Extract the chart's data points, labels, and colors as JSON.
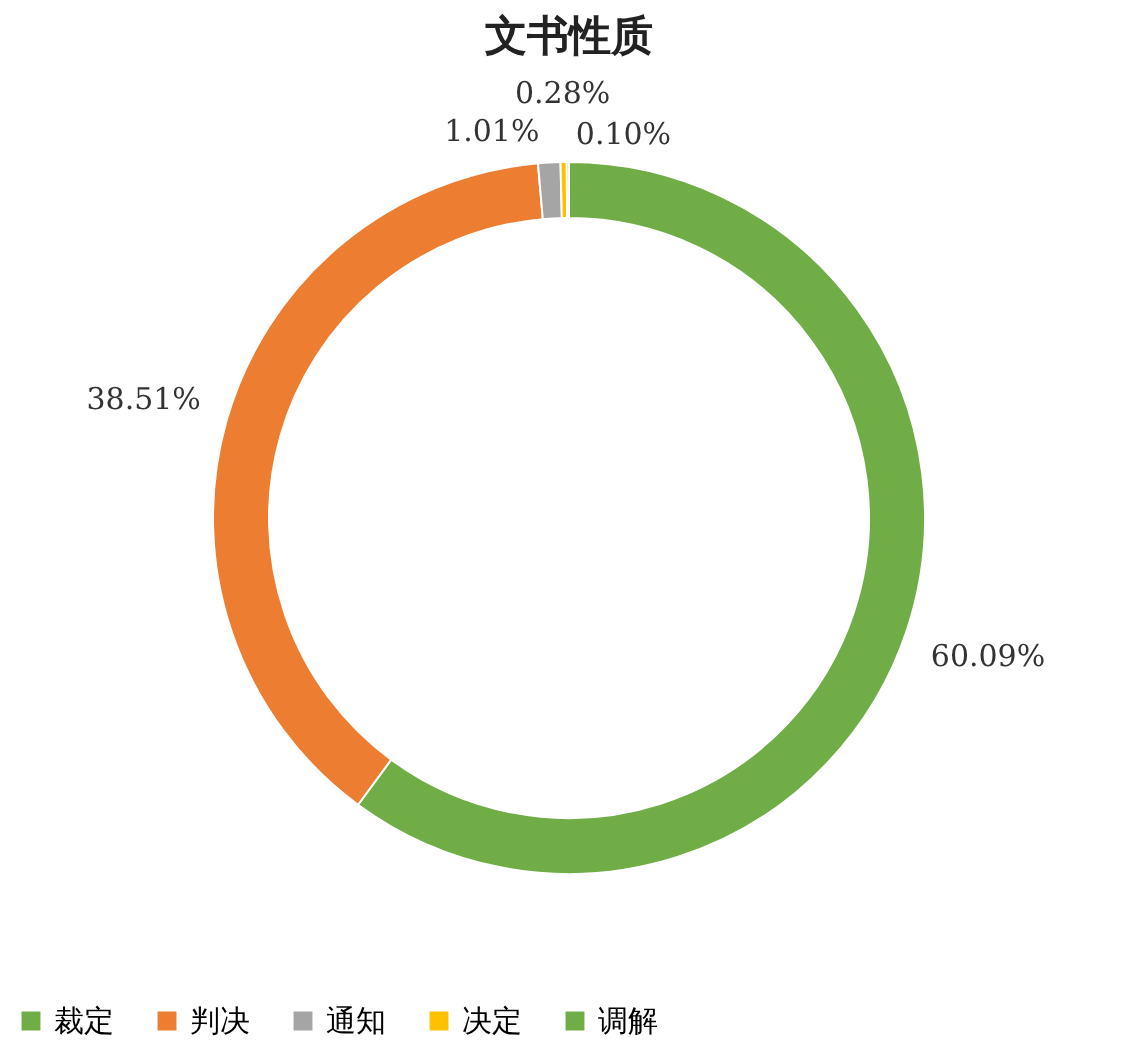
{
  "chart_data": {
    "type": "donut",
    "title": "文书性质",
    "categories": [
      "裁定",
      "判决",
      "通知",
      "决定",
      "调解"
    ],
    "values": [
      60.09,
      38.51,
      1.01,
      0.28,
      0.1
    ],
    "colors": [
      "#70ad47",
      "#ed7d31",
      "#a5a5a5",
      "#ffc000",
      "#70ad47"
    ],
    "value_labels": [
      "60.09%",
      "38.51%",
      "1.01%",
      "0.28%",
      "0.10%"
    ],
    "legend": "bottom"
  }
}
